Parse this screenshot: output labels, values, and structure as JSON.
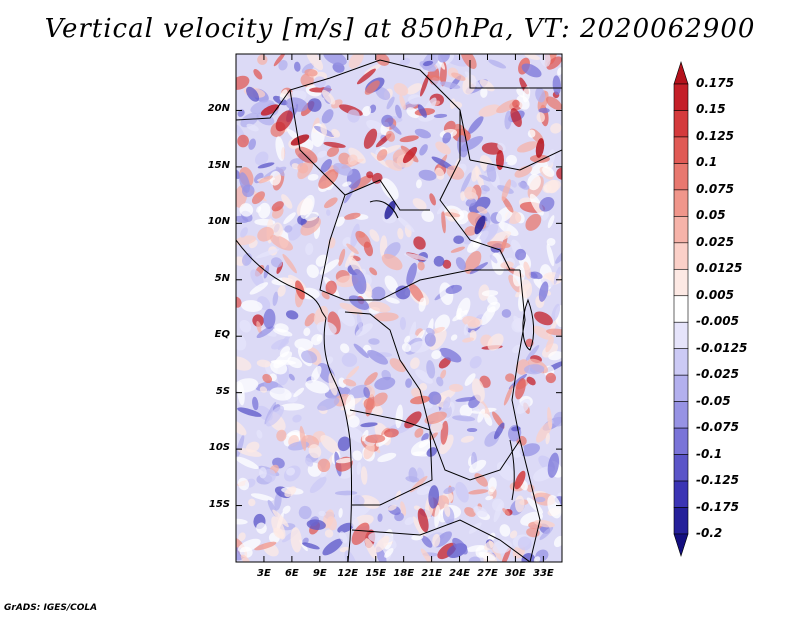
{
  "title": "Vertical velocity [m/s] at 850hPa, VT: 2020062900",
  "credit": "GrADS: IGES/COLA",
  "map": {
    "lat_ticks": [
      "20N",
      "15N",
      "10N",
      "5N",
      "EQ",
      "5S",
      "10S",
      "15S"
    ],
    "lat_values": [
      20,
      15,
      10,
      5,
      0,
      -5,
      -10,
      -15
    ],
    "lon_ticks": [
      "3E",
      "6E",
      "9E",
      "12E",
      "15E",
      "18E",
      "21E",
      "24E",
      "27E",
      "30E",
      "33E"
    ],
    "lon_values": [
      3,
      6,
      9,
      12,
      15,
      18,
      21,
      24,
      27,
      30,
      33
    ],
    "lon_range": [
      0,
      35
    ],
    "lat_range": [
      -20,
      25
    ]
  },
  "colorbar": {
    "labels": [
      "0.175",
      "0.15",
      "0.125",
      "0.1",
      "0.075",
      "0.05",
      "0.025",
      "0.0125",
      "0.005",
      "-0.005",
      "-0.0125",
      "-0.025",
      "-0.05",
      "-0.075",
      "-0.1",
      "-0.125",
      "-0.175",
      "-0.2"
    ],
    "colors": [
      "#b4121c",
      "#c41f28",
      "#d43a3c",
      "#e05a55",
      "#e8786f",
      "#f0968b",
      "#f6b3a9",
      "#fbd0c8",
      "#fde9e4",
      "#ffffff",
      "#e6e4fb",
      "#cccaf5",
      "#b3b0ee",
      "#9793e4",
      "#7a74d8",
      "#5b55c8",
      "#3b34b4",
      "#25209a",
      "#140f80"
    ]
  }
}
